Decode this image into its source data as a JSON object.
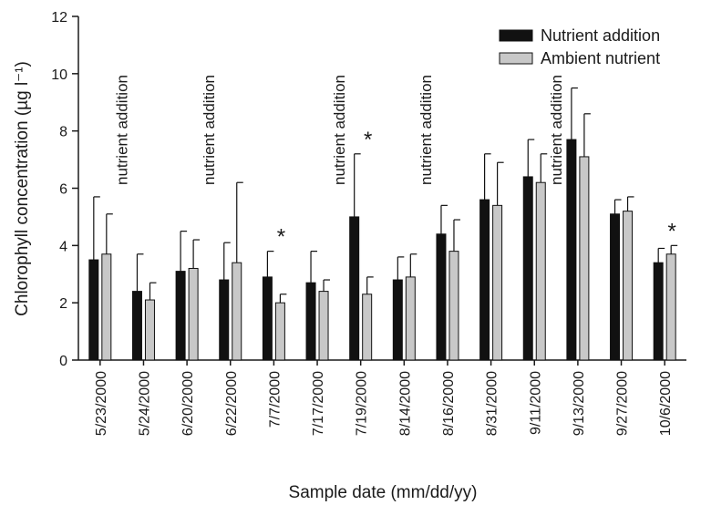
{
  "chart_data": {
    "type": "bar",
    "categories": [
      "5/23/2000",
      "5/24/2000",
      "6/20/2000",
      "6/22/2000",
      "7/7/2000",
      "7/17/2000",
      "7/19/2000",
      "8/14/2000",
      "8/16/2000",
      "8/31/2000",
      "9/11/2000",
      "9/13/2000",
      "9/27/2000",
      "10/6/2000"
    ],
    "series": [
      {
        "name": "Nutrient addition",
        "color": "#111111",
        "values": [
          3.5,
          2.4,
          3.1,
          2.8,
          2.9,
          2.7,
          5.0,
          2.8,
          4.4,
          5.6,
          6.4,
          7.7,
          5.1,
          3.4
        ],
        "error": [
          2.2,
          1.3,
          1.4,
          1.3,
          0.9,
          1.1,
          2.2,
          0.8,
          1.0,
          1.6,
          1.3,
          1.8,
          0.5,
          0.5
        ]
      },
      {
        "name": "Ambient nutrient",
        "color": "#c8c8c8",
        "values": [
          3.7,
          2.1,
          3.2,
          3.4,
          2.0,
          2.4,
          2.3,
          2.9,
          3.8,
          5.4,
          6.2,
          7.1,
          5.2,
          3.7
        ],
        "error": [
          1.4,
          0.6,
          1.0,
          2.8,
          0.3,
          0.4,
          0.6,
          0.8,
          1.1,
          1.5,
          1.0,
          1.5,
          0.5,
          0.3
        ]
      }
    ],
    "xlabel": "Sample date (mm/dd/yy)",
    "ylabel": "Chlorophyll concentration (µg l⁻¹)",
    "ylim": [
      0,
      12
    ],
    "yticks": [
      0,
      2,
      4,
      6,
      8,
      10,
      12
    ],
    "grid": false,
    "legend_placement": "top-right",
    "annotations": {
      "nutrient_addition_label": "nutrient addition",
      "nutrient_addition_after": [
        "5/23/2000",
        "6/20/2000",
        "7/17/2000",
        "8/14/2000",
        "9/11/2000"
      ],
      "significance_marker": "*",
      "significant_dates": [
        "7/7/2000",
        "7/19/2000",
        "10/6/2000"
      ]
    }
  }
}
